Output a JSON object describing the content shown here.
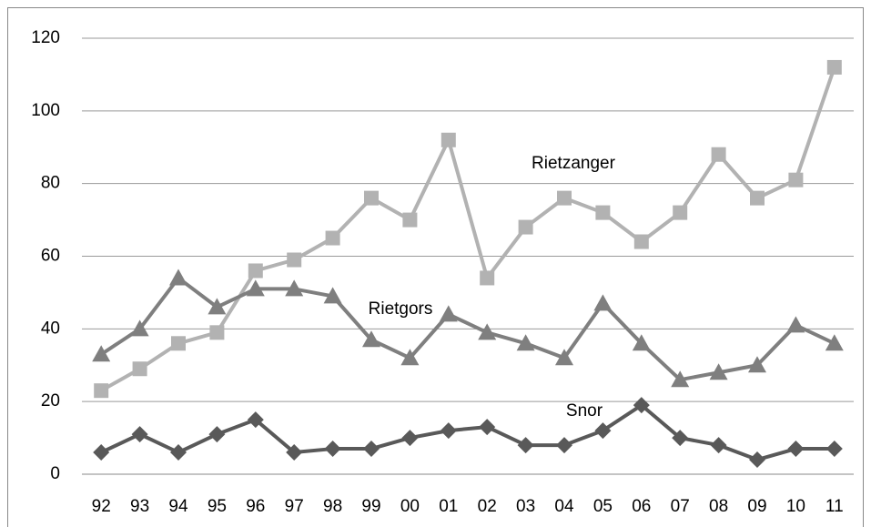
{
  "chart_data": {
    "type": "line",
    "categories": [
      "92",
      "93",
      "94",
      "95",
      "96",
      "97",
      "98",
      "99",
      "00",
      "01",
      "02",
      "03",
      "04",
      "05",
      "06",
      "07",
      "08",
      "09",
      "10",
      "11"
    ],
    "series": [
      {
        "name": "Rietzanger",
        "color": "#b2b2b2",
        "marker": "square",
        "values": [
          23,
          29,
          36,
          39,
          56,
          59,
          65,
          76,
          70,
          92,
          54,
          68,
          76,
          72,
          64,
          72,
          88,
          76,
          81,
          112
        ]
      },
      {
        "name": "Rietgors",
        "color": "#7f7f7f",
        "marker": "triangle",
        "values": [
          33,
          40,
          54,
          46,
          51,
          51,
          49,
          37,
          32,
          44,
          39,
          36,
          32,
          47,
          36,
          26,
          28,
          30,
          41,
          36
        ]
      },
      {
        "name": "Snor",
        "color": "#595959",
        "marker": "diamond",
        "values": [
          6,
          11,
          6,
          11,
          15,
          6,
          7,
          7,
          10,
          12,
          13,
          8,
          8,
          12,
          19,
          10,
          8,
          4,
          7,
          7
        ]
      }
    ],
    "ylim": [
      0,
      120
    ],
    "yticks": [
      0,
      20,
      40,
      60,
      80,
      100,
      120
    ],
    "grid": true
  }
}
